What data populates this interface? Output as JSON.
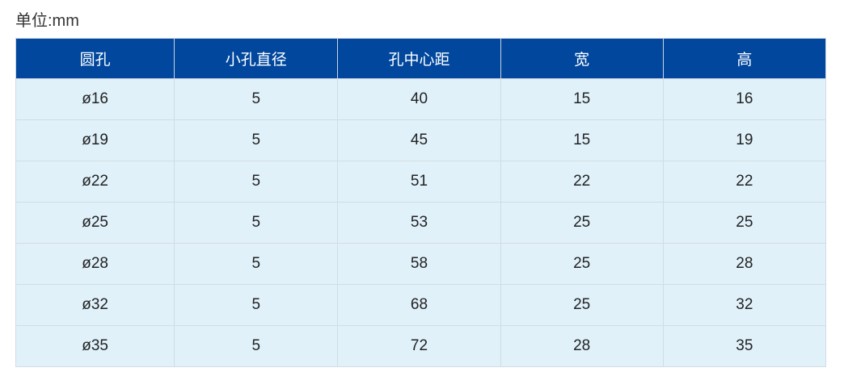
{
  "unit_label": "单位:mm",
  "table": {
    "headers": [
      "圆孔",
      "小孔直径",
      "孔中心距",
      "宽",
      "高"
    ],
    "rows": [
      [
        "ø16",
        "5",
        "40",
        "15",
        "16"
      ],
      [
        "ø19",
        "5",
        "45",
        "15",
        "19"
      ],
      [
        "ø22",
        "5",
        "51",
        "22",
        "22"
      ],
      [
        "ø25",
        "5",
        "53",
        "25",
        "25"
      ],
      [
        "ø28",
        "5",
        "58",
        "25",
        "28"
      ],
      [
        "ø32",
        "5",
        "68",
        "25",
        "32"
      ],
      [
        "ø35",
        "5",
        "72",
        "28",
        "35"
      ]
    ]
  },
  "colors": {
    "header_bg": "#00479d",
    "row_bg": "#e0f1fa"
  }
}
